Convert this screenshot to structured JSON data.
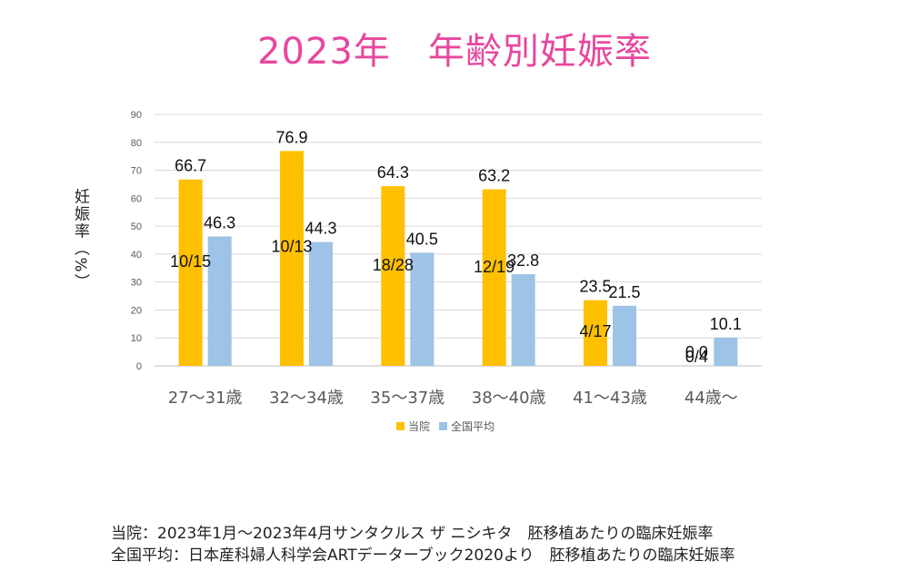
{
  "title": "2023年　年齢別妊娠率",
  "chart_data": {
    "type": "bar",
    "ylabel": "妊娠率（%）",
    "ylim": [
      0,
      90
    ],
    "yticks": [
      0,
      10,
      20,
      30,
      40,
      50,
      60,
      70,
      80,
      90
    ],
    "grid": true,
    "legend_position": "bottom",
    "categories": [
      "27～31歳",
      "32～34歳",
      "35～37歳",
      "38～40歳",
      "41～43歳",
      "44歳～"
    ],
    "series": [
      {
        "name": "当院",
        "color": "#ffc000",
        "values": [
          66.7,
          76.9,
          64.3,
          63.2,
          23.5,
          0.0
        ],
        "value_labels": [
          "66.7",
          "76.9",
          "64.3",
          "63.2",
          "23.5",
          "0.0"
        ],
        "counts": [
          "10/15",
          "10/13",
          "18/28",
          "12/19",
          "4/17",
          "0/4"
        ]
      },
      {
        "name": "全国平均",
        "color": "#9dc3e6",
        "values": [
          46.3,
          44.3,
          40.5,
          32.8,
          21.5,
          10.1
        ],
        "value_labels": [
          "46.3",
          "44.3",
          "40.5",
          "32.8",
          "21.5",
          "10.1"
        ]
      }
    ]
  },
  "footnotes": [
    "当院：2023年1月～2023年4月サンタクルス ザ ニシキタ　胚移植あたりの臨床妊娠率",
    "全国平均：日本産科婦人科学会ARTデーターブック2020より　胚移植あたりの臨床妊娠率"
  ]
}
